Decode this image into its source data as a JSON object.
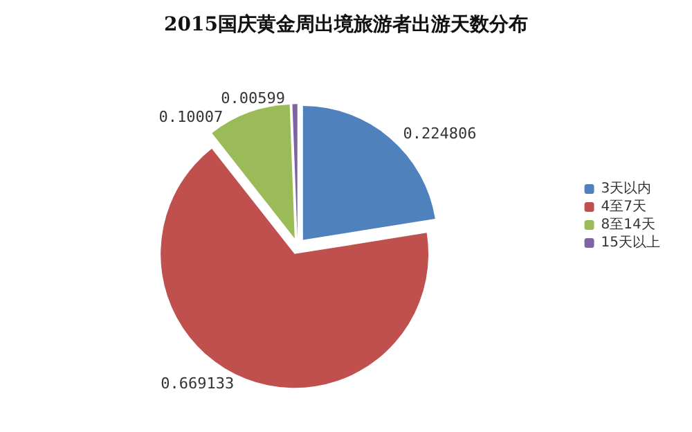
{
  "chart_data": {
    "type": "pie",
    "title": "2015国庆黄金周出境旅游者出游天数分布",
    "categories": [
      "3天以内",
      "4至7天",
      "8至14天",
      "15天以上"
    ],
    "values": [
      0.224806,
      0.669133,
      0.10007,
      0.00599
    ],
    "colors": [
      "#4f81bd",
      "#c0504d",
      "#9bbb59",
      "#8064a2"
    ],
    "data_labels": true,
    "legend": "right"
  }
}
